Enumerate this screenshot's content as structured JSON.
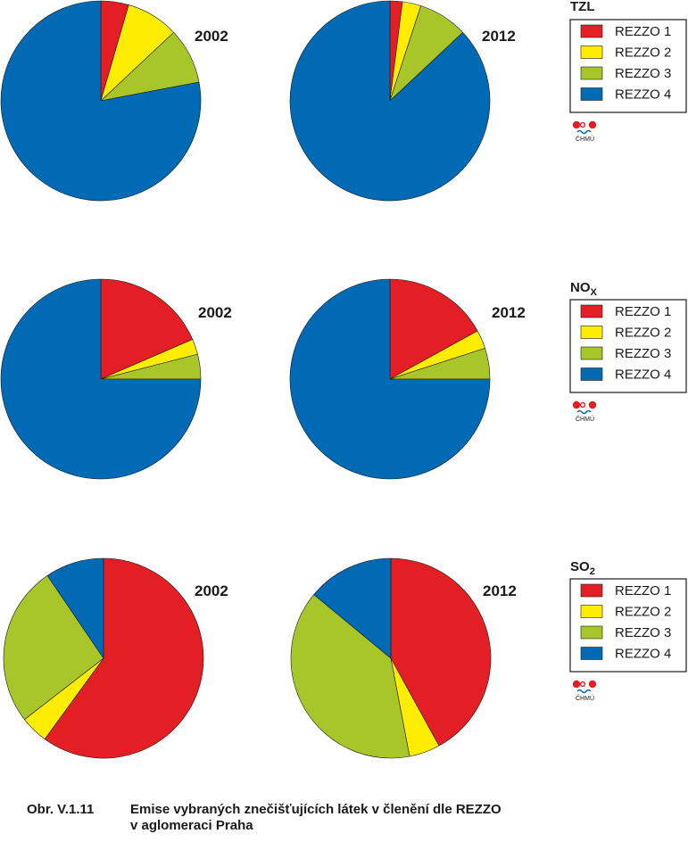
{
  "colors": {
    "REZZO 1": "#e31e24",
    "REZZO 2": "#ffed00",
    "REZZO 3": "#a8c62a",
    "REZZO 4": "#006ab4"
  },
  "logo": {
    "icon": "chmu-logo-icon",
    "text": "ČHMÚ"
  },
  "chart_data": [
    {
      "type": "pie",
      "pollutant": "TZL",
      "pollutant_sub": "",
      "legend": [
        "REZZO 1",
        "REZZO 2",
        "REZZO 3",
        "REZZO 4"
      ],
      "legend_position": "right",
      "series": [
        {
          "name": "2002",
          "values": [
            4.5,
            8.5,
            9.0,
            78.0
          ]
        },
        {
          "name": "2012",
          "values": [
            2.0,
            3.0,
            8.0,
            87.0
          ]
        }
      ]
    },
    {
      "type": "pie",
      "pollutant": "NO",
      "pollutant_sub": "X",
      "legend": [
        "REZZO 1",
        "REZZO 2",
        "REZZO 3",
        "REZZO 4"
      ],
      "legend_position": "right",
      "series": [
        {
          "name": "2002",
          "values": [
            18.5,
            2.5,
            4.0,
            75.0
          ]
        },
        {
          "name": "2012",
          "values": [
            17.0,
            3.0,
            5.0,
            75.0
          ]
        }
      ]
    },
    {
      "type": "pie",
      "pollutant": "SO",
      "pollutant_sub": "2",
      "legend": [
        "REZZO 1",
        "REZZO 2",
        "REZZO 3",
        "REZZO 4"
      ],
      "legend_position": "right",
      "series": [
        {
          "name": "2002",
          "values": [
            60.0,
            4.5,
            26.0,
            9.5
          ]
        },
        {
          "name": "2012",
          "values": [
            42.0,
            5.0,
            39.0,
            14.0
          ]
        }
      ]
    }
  ],
  "caption": {
    "number": "Obr. V.1.11",
    "line1": "Emise vybraných znečišťujících látek v členění dle REZZO",
    "line2": "v aglomeraci Praha"
  }
}
